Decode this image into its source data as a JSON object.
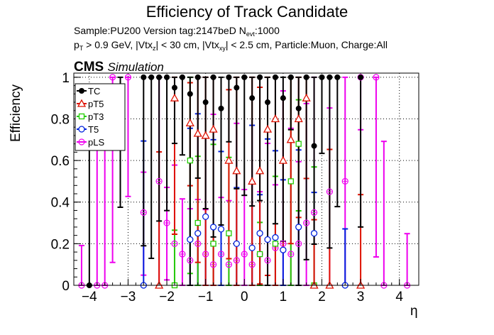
{
  "header": {
    "title": "Efficiency of Track Candidate",
    "sample_line": "Sample:PU200   Version tag:2147beD  N",
    "sample_sub": "evt",
    "sample_tail": ":1000",
    "cuts": {
      "p": "p",
      "p_sub": "T",
      "a": " > 0.9 GeV, |Vtx",
      "a_sub": "z",
      "b": "| < 30 cm, |Vtx",
      "b_sub": "xy",
      "c": "| < 2.5 cm, Particle:Muon, Charge:All"
    },
    "cms": "CMS",
    "simulation": "Simulation"
  },
  "chart_data": {
    "type": "scatter",
    "xlabel": "η",
    "ylabel": "Efficiency",
    "xlim": [
      -4.4,
      4.5
    ],
    "ylim": [
      0,
      1.02
    ],
    "xticks": [
      "−4",
      "−3",
      "−2",
      "−1",
      "0",
      "1",
      "2",
      "3",
      "4"
    ],
    "yticks": [
      "0",
      "0.2",
      "0.4",
      "0.6",
      "0.8",
      "1"
    ],
    "grid": true,
    "legend_position": "top-left",
    "series": [
      {
        "name": "TC",
        "color": "#000000",
        "marker": "circle-filled",
        "points": [
          [
            -4.0,
            0.0
          ],
          [
            -3.2,
            0.75
          ],
          [
            -2.6,
            1.0
          ],
          [
            -2.4,
            1.0
          ],
          [
            -2.2,
            1.0
          ],
          [
            -2.0,
            1.0
          ],
          [
            -1.8,
            0.95
          ],
          [
            -1.6,
            1.0
          ],
          [
            -1.4,
            0.92
          ],
          [
            -1.2,
            1.0
          ],
          [
            -1.0,
            0.88
          ],
          [
            -0.8,
            1.0
          ],
          [
            -0.6,
            0.85
          ],
          [
            -0.4,
            1.0
          ],
          [
            -0.2,
            0.95
          ],
          [
            0.0,
            1.0
          ],
          [
            0.2,
            0.9
          ],
          [
            0.4,
            1.0
          ],
          [
            0.6,
            0.88
          ],
          [
            0.8,
            1.0
          ],
          [
            1.0,
            0.9
          ],
          [
            1.2,
            1.0
          ],
          [
            1.4,
            0.85
          ],
          [
            1.6,
            1.0
          ],
          [
            1.8,
            0.67
          ],
          [
            2.0,
            1.0
          ],
          [
            2.2,
            1.0
          ],
          [
            2.4,
            1.0
          ],
          [
            3.0,
            1.0
          ]
        ]
      },
      {
        "name": "pT5",
        "color": "#dd1100",
        "marker": "triangle-open",
        "points": [
          [
            -2.2,
            0.0
          ],
          [
            -1.8,
            0.9
          ],
          [
            -1.4,
            0.78
          ],
          [
            -1.2,
            0.73
          ],
          [
            -1.0,
            0.72
          ],
          [
            -0.8,
            0.75
          ],
          [
            -0.4,
            0.6
          ],
          [
            -0.2,
            0.55
          ],
          [
            0.2,
            0.5
          ],
          [
            0.4,
            0.55
          ],
          [
            0.6,
            0.75
          ],
          [
            0.8,
            0.8
          ],
          [
            1.0,
            0.6
          ],
          [
            1.2,
            0.7
          ],
          [
            1.4,
            0.8
          ],
          [
            1.6,
            0.9
          ],
          [
            1.8,
            0.0
          ],
          [
            2.2,
            0.0
          ],
          [
            3.0,
            0.0
          ]
        ]
      },
      {
        "name": "pT3",
        "color": "#22cc00",
        "marker": "square-open",
        "points": [
          [
            -1.8,
            0.0
          ],
          [
            -1.4,
            0.6
          ],
          [
            -1.2,
            0.3
          ],
          [
            -0.8,
            0.2
          ],
          [
            -0.4,
            0.25
          ],
          [
            0.4,
            0.15
          ],
          [
            0.8,
            0.2
          ],
          [
            1.2,
            0.5
          ],
          [
            1.4,
            0.68
          ],
          [
            1.8,
            0.0
          ]
        ]
      },
      {
        "name": "T5",
        "color": "#0022dd",
        "marker": "circle-open",
        "points": [
          [
            -2.6,
            0.0
          ],
          [
            -1.4,
            0.22
          ],
          [
            -1.2,
            0.25
          ],
          [
            -1.0,
            0.33
          ],
          [
            -0.8,
            0.28
          ],
          [
            -0.6,
            0.27
          ],
          [
            -0.2,
            0.2
          ],
          [
            0.2,
            0.18
          ],
          [
            0.4,
            0.25
          ],
          [
            0.6,
            0.22
          ],
          [
            0.8,
            0.23
          ],
          [
            1.0,
            0.17
          ],
          [
            1.4,
            0.28
          ],
          [
            1.8,
            0.25
          ],
          [
            2.6,
            0.0
          ]
        ]
      },
      {
        "name": "pLS",
        "color": "#ee00ee",
        "marker": "open-circle-cross",
        "points": [
          [
            -4.2,
            0.0
          ],
          [
            -3.8,
            0.0
          ],
          [
            -3.6,
            0.0
          ],
          [
            -3.4,
            1.0
          ],
          [
            -3.0,
            1.0
          ],
          [
            -2.6,
            0.35
          ],
          [
            -2.2,
            0.5
          ],
          [
            -2.0,
            0.3
          ],
          [
            -1.8,
            0.2
          ],
          [
            -1.6,
            0.15
          ],
          [
            -1.4,
            0.12
          ],
          [
            -1.2,
            0.2
          ],
          [
            -1.0,
            0.15
          ],
          [
            -0.8,
            0.1
          ],
          [
            -0.6,
            0.15
          ],
          [
            -0.4,
            0.1
          ],
          [
            -0.2,
            0.12
          ],
          [
            0.0,
            0.15
          ],
          [
            0.2,
            0.1
          ],
          [
            0.4,
            0.15
          ],
          [
            0.6,
            0.12
          ],
          [
            0.8,
            0.18
          ],
          [
            1.0,
            0.2
          ],
          [
            1.2,
            0.15
          ],
          [
            1.4,
            0.2
          ],
          [
            1.6,
            0.3
          ],
          [
            1.8,
            0.35
          ],
          [
            2.2,
            0.45
          ],
          [
            2.6,
            0.5
          ],
          [
            3.0,
            1.0
          ],
          [
            3.4,
            1.0
          ],
          [
            3.6,
            0.0
          ],
          [
            4.2,
            0.0
          ]
        ]
      }
    ]
  }
}
